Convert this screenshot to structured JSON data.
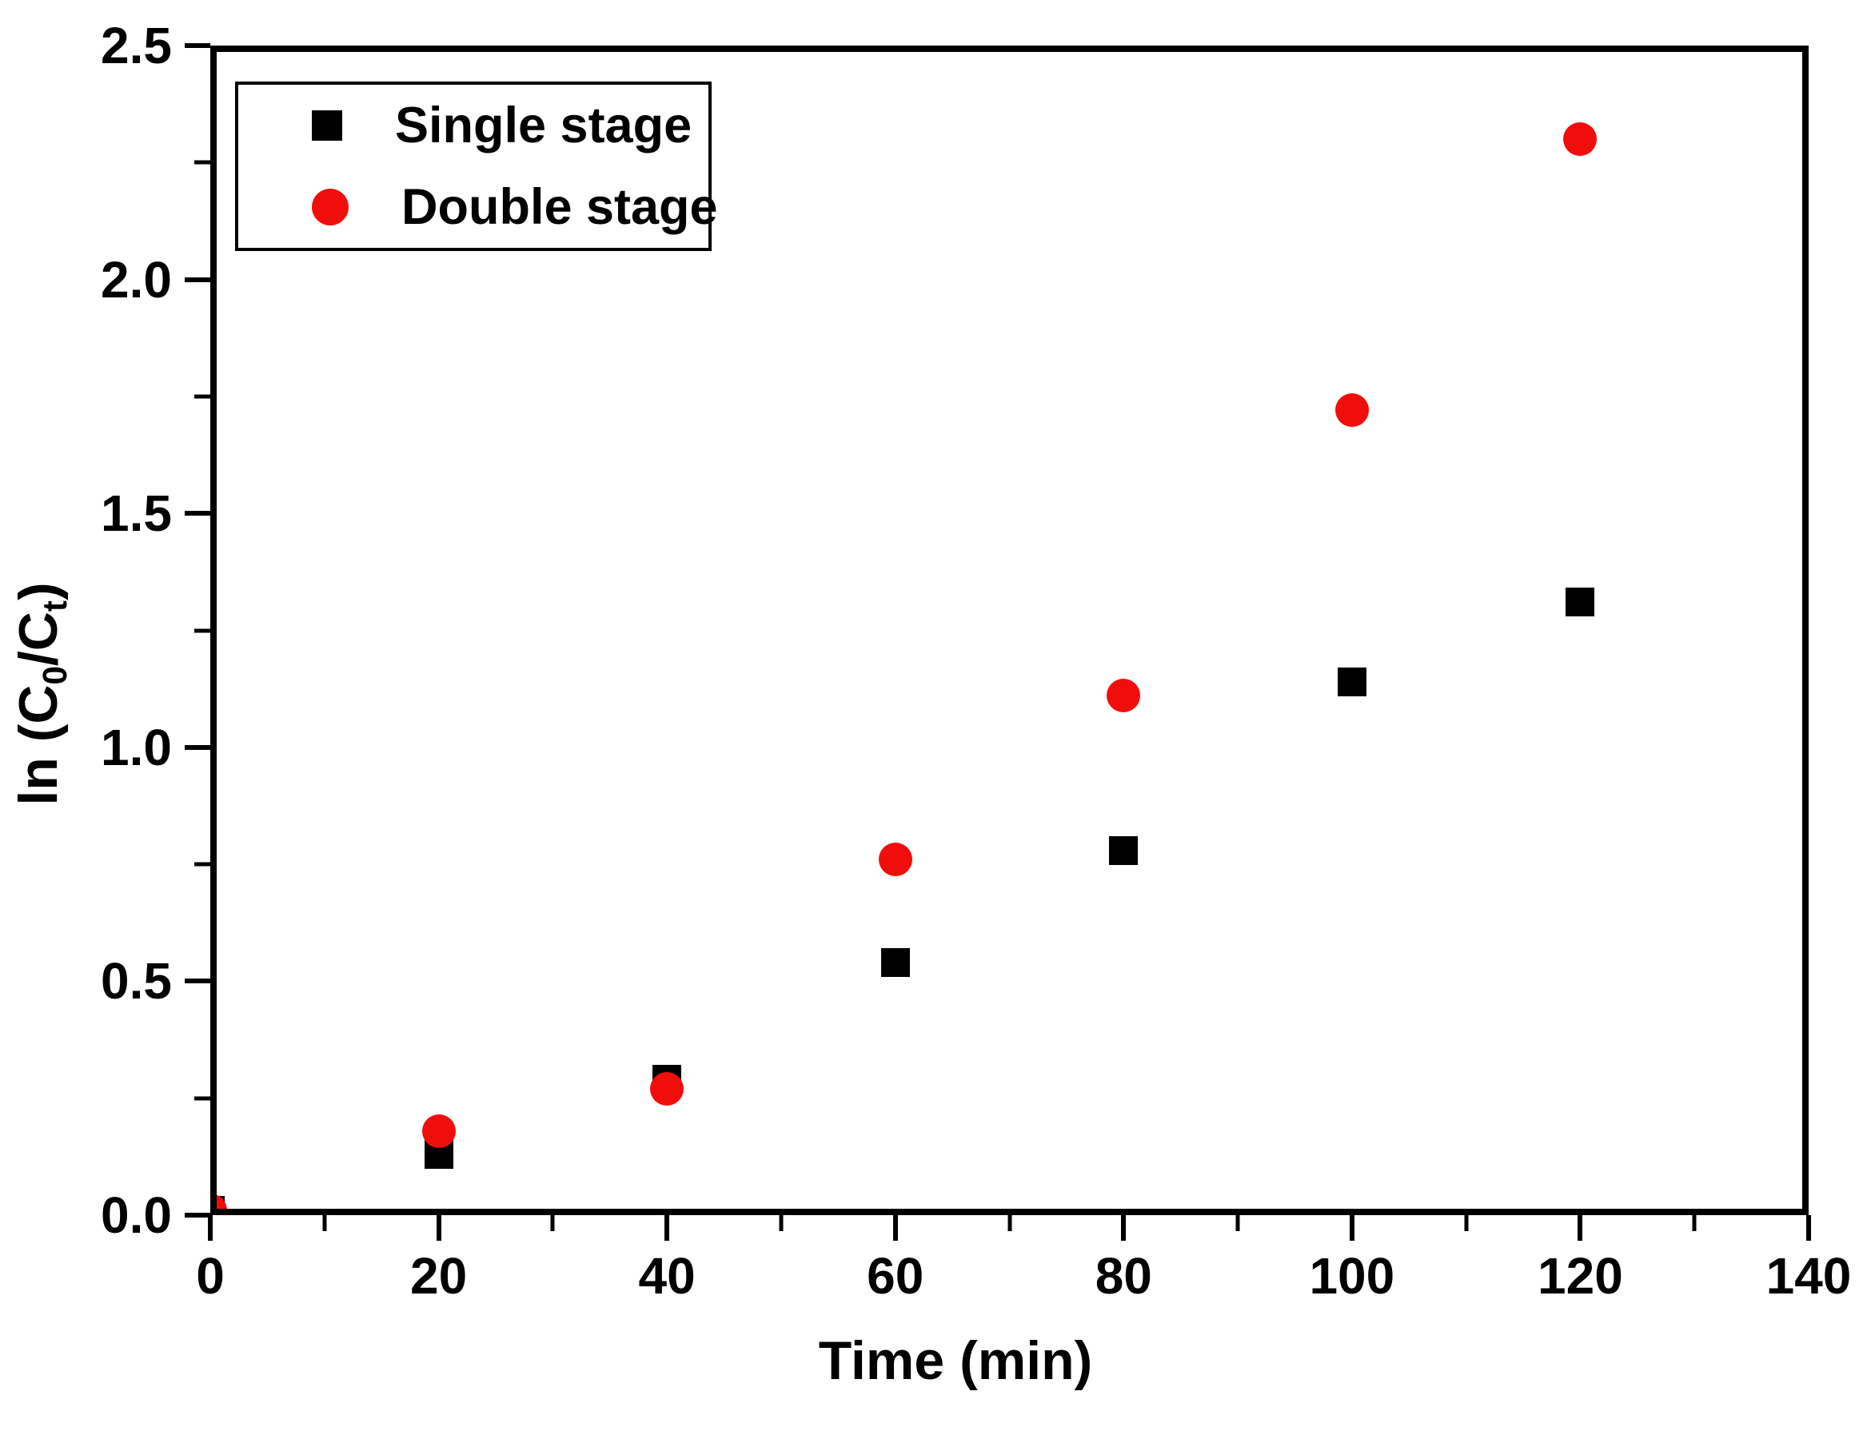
{
  "colors": {
    "background": "#ffffff",
    "axis": "#000000",
    "single_stage": "#000000",
    "double_stage": "#f20d0d"
  },
  "chart_data": {
    "type": "scatter",
    "title": "",
    "xlabel": "Time (min)",
    "ylabel_plain": "ln (C0/Ct)",
    "ylabel_parts": {
      "prefix": "ln (C",
      "sub0": "0",
      "mid": "/C",
      "subt": "t",
      "suffix": ")"
    },
    "xlim": [
      0,
      140
    ],
    "ylim": [
      0.0,
      2.5
    ],
    "grid": false,
    "x_ticks": [
      {
        "value": 0,
        "label": "0"
      },
      {
        "value": 20,
        "label": "20"
      },
      {
        "value": 40,
        "label": "40"
      },
      {
        "value": 60,
        "label": "60"
      },
      {
        "value": 80,
        "label": "80"
      },
      {
        "value": 100,
        "label": "100"
      },
      {
        "value": 120,
        "label": "120"
      },
      {
        "value": 140,
        "label": "140"
      }
    ],
    "x_minor_ticks": [
      10,
      30,
      50,
      70,
      90,
      110,
      130
    ],
    "y_ticks": [
      {
        "value": 0.0,
        "label": "0.0"
      },
      {
        "value": 0.5,
        "label": "0.5"
      },
      {
        "value": 1.0,
        "label": "1.0"
      },
      {
        "value": 1.5,
        "label": "1.5"
      },
      {
        "value": 2.0,
        "label": "2.0"
      },
      {
        "value": 2.5,
        "label": "2.5"
      }
    ],
    "y_minor_ticks": [
      0.25,
      0.75,
      1.25,
      1.75,
      2.25
    ],
    "legend": {
      "position": "top-left",
      "entries": [
        "Single stage",
        "Double stage"
      ]
    },
    "series": [
      {
        "name": "Single stage",
        "marker": "square",
        "color": "#000000",
        "points": [
          [
            0,
            0.01
          ],
          [
            20,
            0.13
          ],
          [
            40,
            0.29
          ],
          [
            60,
            0.54
          ],
          [
            80,
            0.78
          ],
          [
            100,
            1.14
          ],
          [
            120,
            1.31
          ]
        ]
      },
      {
        "name": "Double stage",
        "marker": "circle",
        "color": "#f20d0d",
        "points": [
          [
            0,
            0.01
          ],
          [
            20,
            0.18
          ],
          [
            40,
            0.27
          ],
          [
            60,
            0.76
          ],
          [
            80,
            1.11
          ],
          [
            100,
            1.72
          ],
          [
            120,
            2.3
          ]
        ]
      }
    ]
  }
}
